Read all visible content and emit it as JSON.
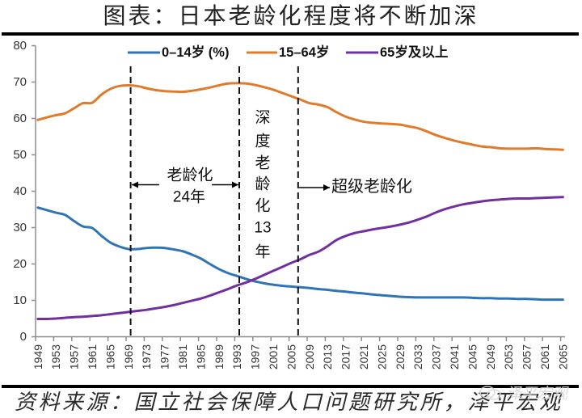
{
  "title": "图表：日本老龄化程度将不断加深",
  "source": "资料来源：国立社会保障人口问题研究所，泽平宏观",
  "watermark": {
    "text": "泽平宏观",
    "icon": "wechat-icon"
  },
  "chart_data": {
    "type": "line",
    "title": "图表：日本老龄化程度将不断加深",
    "xlabel": "",
    "ylabel": "",
    "xlim": [
      1949,
      2065
    ],
    "ylim": [
      0,
      80
    ],
    "yticks": [
      0,
      10,
      20,
      30,
      40,
      50,
      60,
      70,
      80
    ],
    "xtick_labels": [
      "1949",
      "1953",
      "1957",
      "1961",
      "1965",
      "1969",
      "1973",
      "1977",
      "1981",
      "1985",
      "1989",
      "1993",
      "1997",
      "2001",
      "2005",
      "2009",
      "2013",
      "2017",
      "2021",
      "2025",
      "2029",
      "2033",
      "2037",
      "2041",
      "2045",
      "2049",
      "2053",
      "2057",
      "2061",
      "2065"
    ],
    "grid": false,
    "legend_position": "top-center",
    "x": [
      1949,
      1951,
      1953,
      1955,
      1957,
      1959,
      1961,
      1963,
      1965,
      1967,
      1969,
      1971,
      1973,
      1975,
      1977,
      1979,
      1981,
      1983,
      1985,
      1987,
      1989,
      1991,
      1993,
      1995,
      1997,
      1999,
      2001,
      2003,
      2005,
      2007,
      2009,
      2011,
      2013,
      2015,
      2017,
      2019,
      2021,
      2023,
      2025,
      2027,
      2029,
      2031,
      2033,
      2035,
      2037,
      2039,
      2041,
      2043,
      2045,
      2047,
      2049,
      2051,
      2053,
      2055,
      2057,
      2059,
      2061,
      2063,
      2065
    ],
    "series": [
      {
        "name": "0–14岁 (%)",
        "color": "#2F75B5",
        "values": [
          35.5,
          34.8,
          34.1,
          33.5,
          31.8,
          30.3,
          29.9,
          27.8,
          25.9,
          24.8,
          24.1,
          24.1,
          24.4,
          24.5,
          24.4,
          24.0,
          23.5,
          22.6,
          21.5,
          20.0,
          18.6,
          17.5,
          16.7,
          15.9,
          15.2,
          14.7,
          14.3,
          14.0,
          13.8,
          13.6,
          13.4,
          13.1,
          12.9,
          12.6,
          12.4,
          12.1,
          11.9,
          11.6,
          11.4,
          11.2,
          11.0,
          10.9,
          10.8,
          10.8,
          10.8,
          10.8,
          10.8,
          10.8,
          10.7,
          10.6,
          10.6,
          10.5,
          10.5,
          10.4,
          10.4,
          10.3,
          10.2,
          10.2,
          10.2
        ]
      },
      {
        "name": "15–64岁",
        "color": "#E07B2C",
        "values": [
          59.6,
          60.3,
          60.9,
          61.4,
          62.8,
          64.2,
          64.3,
          66.5,
          68.1,
          68.9,
          69.1,
          68.9,
          68.3,
          67.8,
          67.5,
          67.4,
          67.3,
          67.6,
          68.0,
          68.5,
          69.1,
          69.6,
          69.7,
          69.6,
          69.2,
          68.6,
          67.9,
          67.0,
          66.1,
          65.2,
          64.2,
          63.8,
          63.1,
          61.7,
          60.5,
          59.7,
          59.1,
          58.8,
          58.6,
          58.5,
          58.3,
          57.8,
          57.3,
          56.4,
          55.4,
          54.6,
          53.9,
          53.3,
          52.8,
          52.3,
          52.1,
          51.8,
          51.7,
          51.7,
          51.7,
          51.8,
          51.6,
          51.5,
          51.4
        ]
      },
      {
        "name": "65岁及以上",
        "color": "#7030A0",
        "values": [
          4.9,
          4.9,
          5.0,
          5.2,
          5.4,
          5.5,
          5.7,
          5.9,
          6.2,
          6.5,
          6.8,
          7.1,
          7.4,
          7.8,
          8.2,
          8.7,
          9.3,
          9.9,
          10.5,
          11.3,
          12.2,
          13.1,
          14.1,
          14.9,
          15.9,
          17.0,
          18.1,
          19.2,
          20.3,
          21.3,
          22.5,
          23.4,
          24.9,
          26.6,
          27.7,
          28.5,
          29.0,
          29.5,
          29.9,
          30.3,
          30.8,
          31.4,
          32.2,
          33.1,
          34.2,
          35.1,
          35.8,
          36.4,
          36.8,
          37.2,
          37.5,
          37.7,
          37.9,
          38.0,
          38.0,
          38.1,
          38.2,
          38.3,
          38.4
        ]
      }
    ],
    "reference_lines": [
      {
        "year": 1970,
        "style": "dashed"
      },
      {
        "year": 1994,
        "style": "dashed"
      },
      {
        "year": 2007,
        "style": "dashed"
      }
    ],
    "annotations": {
      "aging": {
        "label": "老龄化",
        "duration": "24年",
        "from": 1970,
        "to": 1994
      },
      "deep_aging": {
        "label": "深度老龄化13年",
        "rows": [
          "深",
          "度",
          "老",
          "龄",
          "化",
          "13",
          "年"
        ],
        "from": 1994,
        "to": 2007
      },
      "super_aging": {
        "label": "超级老龄化",
        "from": 2007
      }
    }
  }
}
